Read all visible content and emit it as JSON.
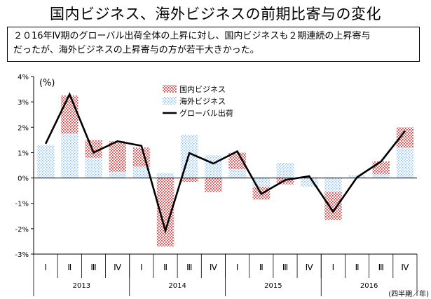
{
  "title": "国内ビジネス、海外ビジネスの前期比寄与の変化",
  "note": {
    "line1": "２０16年Ⅳ期のグローバル出荷全体の上昇に対し、国内ビジネスも２期連続の上昇寄与",
    "line2": "だったが、海外ビジネスの上昇寄与の方が若干大きかった。"
  },
  "chart_data": {
    "type": "bar",
    "stacked": true,
    "ylabel": "(%)",
    "ylim": [
      -3,
      4
    ],
    "yticks": [
      -3,
      -2,
      -1,
      0,
      1,
      2,
      3,
      4
    ],
    "ytick_labels": [
      "-3%",
      "-2%",
      "-1%",
      "0%",
      "1%",
      "2%",
      "3%",
      "4%"
    ],
    "categories": [
      "Ⅰ",
      "Ⅱ",
      "Ⅲ",
      "Ⅳ",
      "Ⅰ",
      "Ⅱ",
      "Ⅲ",
      "Ⅳ",
      "Ⅰ",
      "Ⅱ",
      "Ⅲ",
      "Ⅳ",
      "Ⅰ",
      "Ⅱ",
      "Ⅲ",
      "Ⅳ"
    ],
    "years": [
      {
        "label": "2013",
        "count": 4
      },
      {
        "label": "2014",
        "count": 4
      },
      {
        "label": "2015",
        "count": 4
      },
      {
        "label": "2016",
        "count": 4
      }
    ],
    "x_unit_label": "(四半期／年)",
    "series": [
      {
        "name": "海外ビジネス",
        "kind": "bar",
        "color": "#aac8e6",
        "values": [
          1.3,
          1.75,
          0.8,
          0.25,
          0.45,
          0.2,
          1.7,
          0.9,
          0.35,
          -0.35,
          0.6,
          -0.35,
          -0.55,
          0.1,
          0.15,
          1.2
        ]
      },
      {
        "name": "国内ビジネス",
        "kind": "bar",
        "color": "#d26a6a",
        "values": [
          0.0,
          1.5,
          0.7,
          1.2,
          0.75,
          -2.7,
          -0.15,
          -0.55,
          0.65,
          -0.5,
          -0.25,
          0.0,
          -1.1,
          0.0,
          0.5,
          0.8
        ]
      },
      {
        "name": "グローバル出荷",
        "kind": "line",
        "color": "#000000",
        "values": [
          1.35,
          3.3,
          1.0,
          1.45,
          1.27,
          -2.08,
          0.98,
          0.57,
          1.05,
          -0.63,
          -0.08,
          0.07,
          -1.33,
          0.03,
          0.65,
          1.85
        ]
      }
    ],
    "legend": {
      "position": "top-center"
    }
  }
}
